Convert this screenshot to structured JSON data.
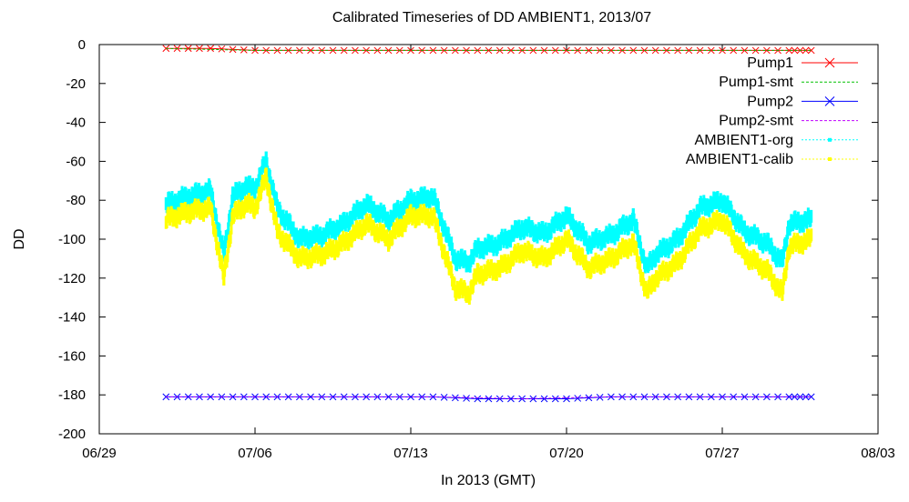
{
  "chart_data": {
    "type": "line",
    "title": "Calibrated Timeseries of DD AMBIENT1, 2013/07",
    "xlabel": "In 2013 (GMT)",
    "ylabel": "DD",
    "x_range": [
      "2013-06-29",
      "2013-08-03"
    ],
    "ylim": [
      -200,
      0
    ],
    "x_ticks": [
      {
        "date": "2013-06-29",
        "label": "06/29"
      },
      {
        "date": "2013-07-06",
        "label": "07/06"
      },
      {
        "date": "2013-07-13",
        "label": "07/13"
      },
      {
        "date": "2013-07-20",
        "label": "07/20"
      },
      {
        "date": "2013-07-27",
        "label": "07/27"
      },
      {
        "date": "2013-08-03",
        "label": "08/03"
      }
    ],
    "y_ticks": [
      0,
      -20,
      -40,
      -60,
      -80,
      -100,
      -120,
      -140,
      -160,
      -180,
      -200
    ],
    "grid": false,
    "legend_position": "top-right",
    "series": [
      {
        "name": "Pump1",
        "color": "#ff0000",
        "style": "line-x-markers",
        "x": [
          "2013-07-02",
          "2013-07-04",
          "2013-07-06",
          "2013-07-08",
          "2013-07-10",
          "2013-07-12",
          "2013-07-14",
          "2013-07-16",
          "2013-07-18",
          "2013-07-20",
          "2013-07-22",
          "2013-07-24",
          "2013-07-26",
          "2013-07-28",
          "2013-07-30",
          "2013-07-31"
        ],
        "y": [
          -2,
          -2,
          -3,
          -3,
          -3,
          -3,
          -3,
          -3,
          -3,
          -3,
          -3,
          -3,
          -3,
          -3,
          -3,
          -3
        ]
      },
      {
        "name": "Pump1-smt",
        "color": "#00c000",
        "style": "dashed-line",
        "x": [
          "2013-07-02",
          "2013-07-06",
          "2013-07-10",
          "2013-07-14",
          "2013-07-18",
          "2013-07-22",
          "2013-07-26",
          "2013-07-31"
        ],
        "y": [
          -2,
          -3,
          -3,
          -3,
          -3,
          -3,
          -3,
          -3
        ]
      },
      {
        "name": "Pump2",
        "color": "#0000ff",
        "style": "line-x-markers",
        "x": [
          "2013-07-02",
          "2013-07-04",
          "2013-07-06",
          "2013-07-08",
          "2013-07-10",
          "2013-07-12",
          "2013-07-14",
          "2013-07-16",
          "2013-07-18",
          "2013-07-20",
          "2013-07-22",
          "2013-07-24",
          "2013-07-26",
          "2013-07-28",
          "2013-07-30",
          "2013-07-31"
        ],
        "y": [
          -181,
          -181,
          -181,
          -181,
          -181,
          -181,
          -181,
          -182,
          -182,
          -182,
          -181,
          -181,
          -181,
          -181,
          -181,
          -181
        ]
      },
      {
        "name": "Pump2-smt",
        "color": "#c000ff",
        "style": "dashed-line",
        "x": [
          "2013-07-02",
          "2013-07-06",
          "2013-07-10",
          "2013-07-14",
          "2013-07-18",
          "2013-07-22",
          "2013-07-26",
          "2013-07-31"
        ],
        "y": [
          -181,
          -181,
          -181,
          -181,
          -182,
          -181,
          -181,
          -181
        ]
      },
      {
        "name": "AMBIENT1-org",
        "color": "#00ffff",
        "style": "points",
        "x": [
          "2013-07-02",
          "2013-07-03",
          "2013-07-04",
          "2013-07-04.6",
          "2013-07-05",
          "2013-07-05.6",
          "2013-07-06",
          "2013-07-06.5",
          "2013-07-07",
          "2013-07-08",
          "2013-07-09",
          "2013-07-10",
          "2013-07-11",
          "2013-07-12",
          "2013-07-13",
          "2013-07-14",
          "2013-07-15",
          "2013-07-15.6",
          "2013-07-16",
          "2013-07-17",
          "2013-07-18",
          "2013-07-19",
          "2013-07-20",
          "2013-07-21",
          "2013-07-22",
          "2013-07-23",
          "2013-07-23.6",
          "2013-07-24",
          "2013-07-25",
          "2013-07-26",
          "2013-07-27",
          "2013-07-28",
          "2013-07-29",
          "2013-07-29.7",
          "2013-07-30",
          "2013-07-31"
        ],
        "y": [
          -82,
          -78,
          -75,
          -108,
          -78,
          -73,
          -74,
          -60,
          -84,
          -100,
          -98,
          -92,
          -82,
          -90,
          -80,
          -78,
          -110,
          -112,
          -105,
          -102,
          -94,
          -97,
          -88,
          -102,
          -98,
          -90,
          -115,
          -108,
          -100,
          -84,
          -80,
          -96,
          -102,
          -112,
          -92,
          -90
        ]
      },
      {
        "name": "AMBIENT1-calib",
        "color": "#ffff00",
        "style": "points",
        "x": [
          "2013-07-02",
          "2013-07-03",
          "2013-07-04",
          "2013-07-04.6",
          "2013-07-05",
          "2013-07-05.6",
          "2013-07-06",
          "2013-07-06.5",
          "2013-07-07",
          "2013-07-08",
          "2013-07-09",
          "2013-07-10",
          "2013-07-11",
          "2013-07-12",
          "2013-07-13",
          "2013-07-14",
          "2013-07-15",
          "2013-07-15.6",
          "2013-07-16",
          "2013-07-17",
          "2013-07-18",
          "2013-07-19",
          "2013-07-20",
          "2013-07-21",
          "2013-07-22",
          "2013-07-23",
          "2013-07-23.6",
          "2013-07-24",
          "2013-07-25",
          "2013-07-26",
          "2013-07-27",
          "2013-07-28",
          "2013-07-29",
          "2013-07-29.7",
          "2013-07-30",
          "2013-07-31"
        ],
        "y": [
          -90,
          -86,
          -84,
          -120,
          -88,
          -82,
          -84,
          -68,
          -96,
          -110,
          -108,
          -102,
          -92,
          -100,
          -88,
          -88,
          -125,
          -128,
          -118,
          -115,
          -106,
          -110,
          -100,
          -115,
          -110,
          -102,
          -128,
          -120,
          -112,
          -95,
          -90,
          -108,
          -116,
          -128,
          -104,
          -100
        ]
      }
    ]
  }
}
